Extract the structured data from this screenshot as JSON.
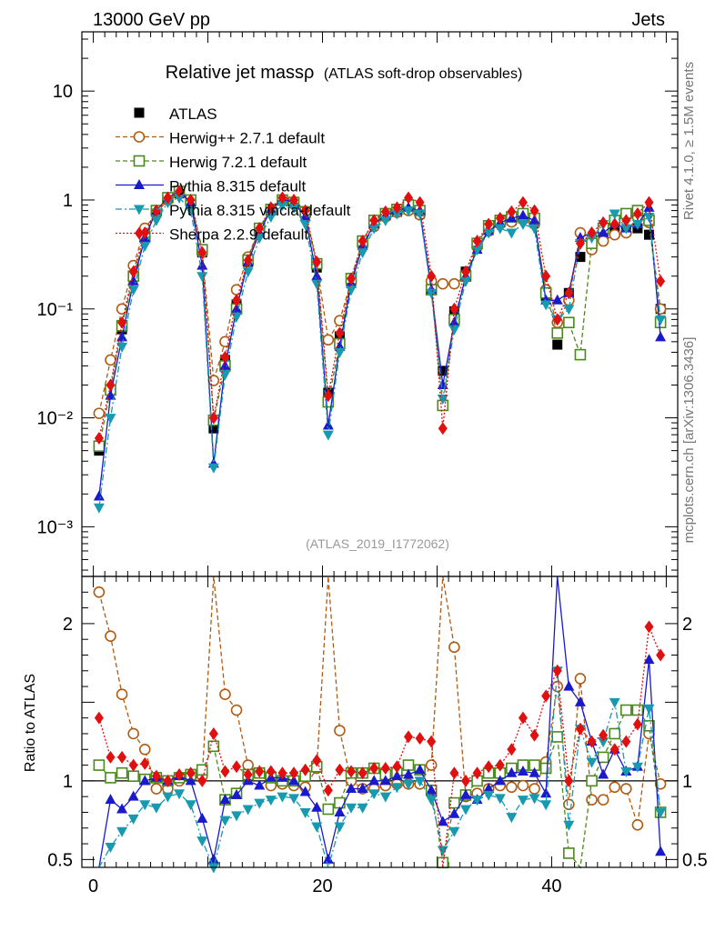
{
  "header": {
    "left": "13000 GeV pp",
    "right": "Jets"
  },
  "side_labels": {
    "rivet": "Rivet 4.1.0, ≥ 1.5M events",
    "source": "mcplots.cern.ch [arXiv:1306.3436]"
  },
  "chart_data": {
    "type": "line",
    "title": "Relative jet massρ",
    "title_suffix": "(ATLAS soft-drop observables)",
    "analysis_label": "(ATLAS_2019_I1772062)",
    "xlabel": "",
    "ylabel": "",
    "ratio_ylabel": "Ratio to ATLAS",
    "yscale": "log",
    "xlim": [
      -1,
      51
    ],
    "ylim": [
      0.00035,
      35
    ],
    "ratio_ylim": [
      0.45,
      2.3
    ],
    "x_ticks": [
      "0",
      "20",
      "40"
    ],
    "y_ticks": [
      "10⁻³",
      "10⁻²",
      "10⁻¹",
      "1",
      "10"
    ],
    "ratio_ticks": [
      "0.5",
      "1",
      "2"
    ],
    "x": [
      0.5,
      1.5,
      2.5,
      3.5,
      4.5,
      5.5,
      6.5,
      7.5,
      8.5,
      9.5,
      10.5,
      11.5,
      12.5,
      13.5,
      14.5,
      15.5,
      16.5,
      17.5,
      18.5,
      19.5,
      20.5,
      21.5,
      22.5,
      23.5,
      24.5,
      25.5,
      26.5,
      27.5,
      28.5,
      29.5,
      30.5,
      31.5,
      32.5,
      33.5,
      34.5,
      35.5,
      36.5,
      37.5,
      38.5,
      39.5,
      40.5,
      41.5,
      42.5,
      43.5,
      44.5,
      45.5,
      46.5,
      47.5,
      48.5,
      49.5
    ],
    "series": [
      {
        "name": "ATLAS",
        "color": "#000000",
        "dash": "",
        "marker": "square",
        "values": [
          0.005,
          0.018,
          0.065,
          0.2,
          0.45,
          0.78,
          1.05,
          1.15,
          0.95,
          0.33,
          0.008,
          0.034,
          0.11,
          0.27,
          0.52,
          0.8,
          1.0,
          0.95,
          0.75,
          0.24,
          0.017,
          0.056,
          0.18,
          0.4,
          0.6,
          0.72,
          0.78,
          0.82,
          0.75,
          0.16,
          0.027,
          0.095,
          0.22,
          0.4,
          0.55,
          0.62,
          0.65,
          0.68,
          0.62,
          0.13,
          0.047,
          0.14,
          0.3,
          0.4,
          0.48,
          0.5,
          0.52,
          0.55,
          0.48,
          0.1
        ],
        "ratio": [
          1,
          1,
          1,
          1,
          1,
          1,
          1,
          1,
          1,
          1,
          1,
          1,
          1,
          1,
          1,
          1,
          1,
          1,
          1,
          1,
          1,
          1,
          1,
          1,
          1,
          1,
          1,
          1,
          1,
          1,
          1,
          1,
          1,
          1,
          1,
          1,
          1,
          1,
          1,
          1,
          1,
          1,
          1,
          1,
          1,
          1,
          1,
          1,
          1,
          1
        ]
      },
      {
        "name": "Herwig++ 2.7.1 default",
        "color": "#b15b12",
        "dash": "5,3",
        "marker": "circle-open",
        "values": [
          0.011,
          0.034,
          0.1,
          0.25,
          0.55,
          0.76,
          1.0,
          1.15,
          0.98,
          0.33,
          0.022,
          0.05,
          0.15,
          0.3,
          0.55,
          0.78,
          0.98,
          0.92,
          0.72,
          0.26,
          0.052,
          0.078,
          0.18,
          0.38,
          0.57,
          0.7,
          0.77,
          0.8,
          0.73,
          0.18,
          0.17,
          0.17,
          0.2,
          0.37,
          0.52,
          0.6,
          0.63,
          0.66,
          0.6,
          0.15,
          0.075,
          0.12,
          0.5,
          0.35,
          0.42,
          0.48,
          0.5,
          0.7,
          0.62,
          0.1
        ],
        "ratio": [
          2.2,
          1.92,
          1.55,
          1.3,
          1.2,
          0.95,
          0.95,
          1.0,
          1.03,
          1.03,
          2.75,
          1.55,
          1.45,
          1.1,
          1.05,
          0.97,
          0.98,
          0.97,
          0.96,
          1.08,
          3.1,
          1.32,
          1.0,
          0.95,
          0.95,
          0.97,
          0.98,
          0.98,
          0.98,
          1.1,
          2.5,
          1.85,
          0.9,
          0.92,
          0.95,
          0.97,
          0.96,
          0.97,
          0.95,
          1.12,
          1.6,
          0.85,
          1.65,
          0.88,
          0.88,
          0.96,
          0.95,
          0.72,
          1.3,
          0.98
        ]
      },
      {
        "name": "Herwig 7.2.1 default",
        "color": "#4a8a1c",
        "dash": "5,3",
        "marker": "square-open",
        "values": [
          0.0055,
          0.018,
          0.07,
          0.2,
          0.46,
          0.8,
          1.05,
          1.2,
          1.0,
          0.35,
          0.0095,
          0.03,
          0.1,
          0.28,
          0.55,
          0.82,
          1.0,
          0.95,
          0.78,
          0.26,
          0.014,
          0.048,
          0.19,
          0.42,
          0.65,
          0.75,
          0.82,
          0.9,
          0.8,
          0.15,
          0.013,
          0.08,
          0.2,
          0.4,
          0.58,
          0.65,
          0.7,
          0.75,
          0.68,
          0.14,
          0.06,
          0.075,
          0.038,
          0.4,
          0.55,
          0.65,
          0.75,
          0.8,
          0.65,
          0.075
        ],
        "ratio": [
          1.1,
          1.02,
          1.05,
          1.03,
          1.01,
          1.02,
          1.0,
          1.02,
          1.04,
          1.07,
          1.22,
          0.88,
          0.92,
          1.04,
          1.05,
          1.02,
          1.0,
          1.0,
          1.03,
          1.09,
          0.82,
          0.86,
          1.05,
          1.05,
          1.08,
          1.04,
          1.05,
          1.1,
          1.07,
          0.94,
          0.48,
          0.86,
          0.91,
          1.0,
          1.05,
          1.05,
          1.08,
          1.1,
          1.1,
          1.08,
          1.28,
          0.54,
          0.13,
          1.0,
          1.15,
          1.3,
          1.45,
          1.45,
          1.35,
          0.8
        ]
      },
      {
        "name": "Pythia 8.315 default",
        "color": "#1a1acc",
        "dash": "",
        "marker": "triangle-up",
        "values": [
          0.0019,
          0.016,
          0.055,
          0.18,
          0.45,
          0.8,
          1.05,
          1.2,
          0.95,
          0.25,
          0.0038,
          0.03,
          0.1,
          0.27,
          0.5,
          0.82,
          1.02,
          0.95,
          0.7,
          0.2,
          0.0085,
          0.045,
          0.17,
          0.38,
          0.6,
          0.72,
          0.8,
          0.85,
          0.8,
          0.15,
          0.02,
          0.075,
          0.2,
          0.35,
          0.52,
          0.62,
          0.68,
          0.72,
          0.65,
          0.12,
          0.12,
          0.14,
          0.45,
          0.5,
          0.5,
          0.6,
          0.55,
          0.6,
          0.85,
          0.055
        ],
        "ratio": [
          0.34,
          0.88,
          0.82,
          0.9,
          1.0,
          1.02,
          1.0,
          1.03,
          1.0,
          0.76,
          0.5,
          0.88,
          0.91,
          1.0,
          0.97,
          1.02,
          1.02,
          1.0,
          0.93,
          0.83,
          0.5,
          0.8,
          0.95,
          0.95,
          1.0,
          1.0,
          1.03,
          1.04,
          1.07,
          0.94,
          0.74,
          0.79,
          0.91,
          0.88,
          0.95,
          1.0,
          1.05,
          1.06,
          1.05,
          0.92,
          2.55,
          1.6,
          1.5,
          1.25,
          1.04,
          1.2,
          1.06,
          1.09,
          1.77,
          0.55
        ]
      },
      {
        "name": "Pythia 8.315 vincia-default",
        "color": "#1799b0",
        "dash": "7,3,2,3",
        "marker": "triangle-down",
        "values": [
          0.0015,
          0.01,
          0.045,
          0.15,
          0.38,
          0.65,
          0.95,
          1.05,
          0.8,
          0.2,
          0.0035,
          0.025,
          0.085,
          0.22,
          0.45,
          0.7,
          0.9,
          0.85,
          0.6,
          0.17,
          0.007,
          0.04,
          0.15,
          0.33,
          0.55,
          0.65,
          0.75,
          0.8,
          0.75,
          0.14,
          0.015,
          0.065,
          0.18,
          0.35,
          0.5,
          0.55,
          0.5,
          0.6,
          0.55,
          0.11,
          0.08,
          0.1,
          0.4,
          0.45,
          0.6,
          0.75,
          0.55,
          0.6,
          0.7,
          0.08
        ],
        "ratio": [
          0.3,
          0.58,
          0.68,
          0.76,
          0.85,
          0.83,
          0.9,
          0.92,
          0.85,
          0.62,
          0.45,
          0.75,
          0.78,
          0.82,
          0.86,
          0.88,
          0.9,
          0.89,
          0.8,
          0.71,
          0.42,
          0.71,
          0.83,
          0.83,
          0.92,
          0.9,
          0.96,
          0.98,
          1.0,
          0.88,
          0.56,
          0.68,
          0.82,
          0.88,
          0.91,
          0.89,
          0.77,
          0.88,
          0.89,
          0.85,
          1.7,
          0.72,
          1.33,
          1.12,
          1.25,
          1.5,
          1.06,
          1.09,
          1.46,
          0.8
        ]
      },
      {
        "name": "Sherpa 2.2.9 default",
        "color": "#e01010",
        "dash": "2,2",
        "marker": "diamond",
        "values": [
          0.0065,
          0.02,
          0.075,
          0.22,
          0.5,
          0.8,
          1.05,
          1.2,
          1.0,
          0.33,
          0.01,
          0.036,
          0.12,
          0.28,
          0.55,
          0.85,
          1.05,
          1.0,
          0.8,
          0.27,
          0.016,
          0.06,
          0.19,
          0.42,
          0.65,
          0.78,
          0.85,
          1.05,
          0.95,
          0.2,
          0.008,
          0.1,
          0.22,
          0.42,
          0.6,
          0.68,
          0.78,
          0.95,
          0.8,
          0.2,
          0.08,
          0.14,
          0.4,
          0.5,
          0.62,
          0.6,
          0.65,
          0.75,
          0.95,
          0.18
        ],
        "ratio": [
          1.4,
          1.15,
          1.15,
          1.1,
          1.11,
          1.03,
          1.0,
          1.04,
          1.05,
          1.0,
          1.3,
          1.06,
          1.09,
          1.04,
          1.06,
          1.06,
          1.05,
          1.05,
          1.07,
          1.13,
          0.94,
          1.07,
          1.06,
          1.05,
          1.08,
          1.08,
          1.09,
          1.28,
          1.27,
          1.25,
          0.3,
          1.05,
          1.0,
          1.05,
          1.09,
          1.1,
          1.2,
          1.4,
          1.29,
          1.54,
          1.7,
          1.0,
          1.33,
          1.25,
          1.29,
          1.2,
          1.25,
          1.36,
          1.98,
          1.8
        ]
      }
    ]
  }
}
